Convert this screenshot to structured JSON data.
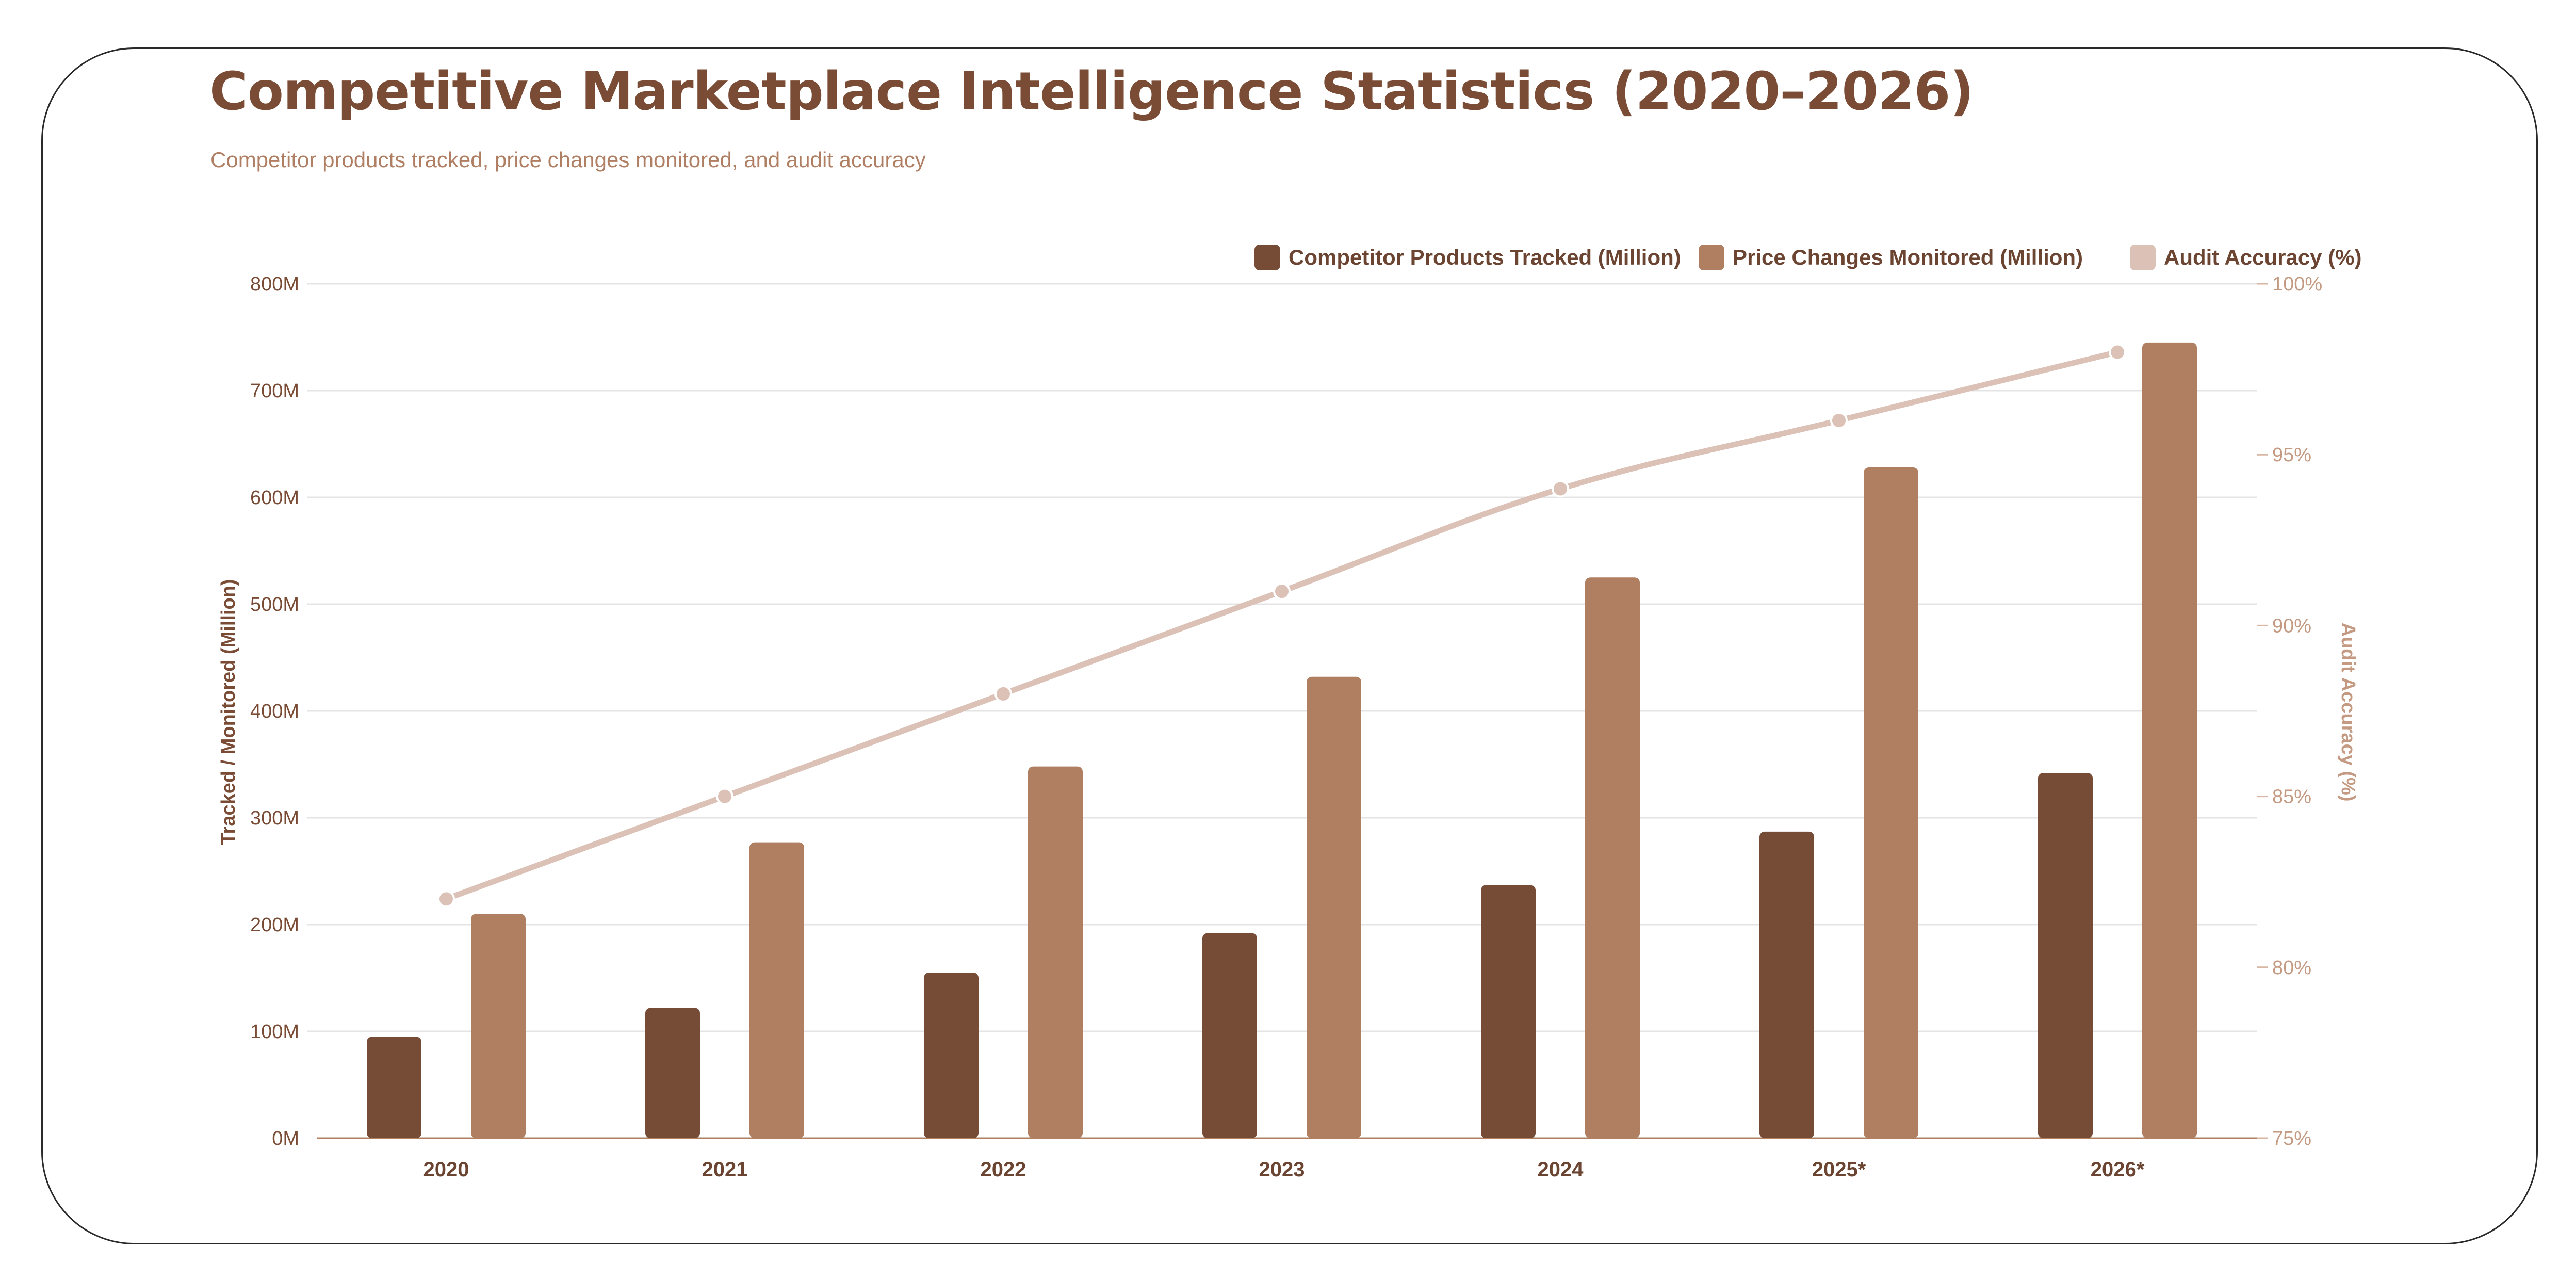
{
  "title": "Competitive Marketplace Intelligence Statistics (2020–2026)",
  "subtitle": "Competitor products tracked, price changes monitored, and audit accuracy",
  "chart_data": {
    "type": "bar",
    "categories": [
      "2020",
      "2021",
      "2022",
      "2023",
      "2024",
      "2025*",
      "2026*"
    ],
    "series": [
      {
        "name": "Competitor Products Tracked (Million)",
        "type": "bar",
        "axis": "left",
        "color": "#774c36",
        "values": [
          95,
          122,
          155,
          192,
          237,
          287,
          342
        ]
      },
      {
        "name": "Price Changes Monitored (Million)",
        "type": "bar",
        "axis": "left",
        "color": "#b07f61",
        "values": [
          210,
          277,
          348,
          432,
          525,
          628,
          745
        ]
      },
      {
        "name": "Audit Accuracy (%)",
        "type": "line",
        "axis": "right",
        "color": "#dbc1b6",
        "values": [
          82,
          85,
          88,
          91,
          94,
          96,
          98
        ]
      }
    ],
    "ylabel": "Tracked / Monitored (Million)",
    "y2label": "Audit Accuracy (%)",
    "ylim": [
      0,
      800
    ],
    "y2lim": [
      75,
      100
    ],
    "yticks": [
      "0M",
      "100M",
      "200M",
      "300M",
      "400M",
      "500M",
      "600M",
      "700M",
      "800M"
    ],
    "y2ticks": [
      "75%",
      "80%",
      "85%",
      "90%",
      "95%",
      "100%"
    ],
    "grid": true,
    "legend": "top-right"
  }
}
